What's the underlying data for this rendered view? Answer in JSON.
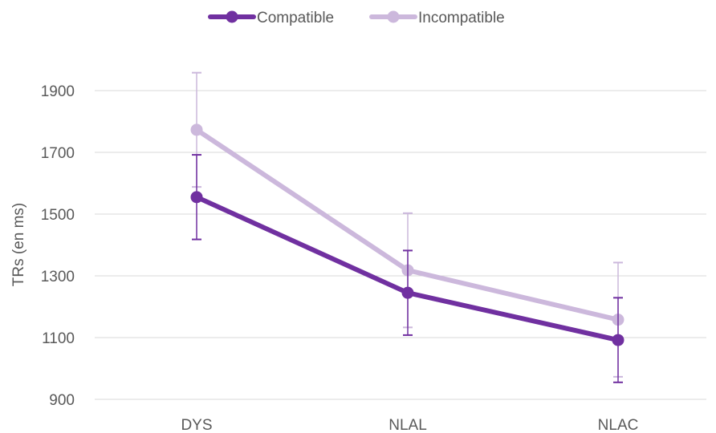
{
  "chart_data": {
    "type": "line",
    "title": "",
    "xlabel": "",
    "ylabel": "TRs (en ms)",
    "categories": [
      "DYS",
      "NLAL",
      "NLAC"
    ],
    "ylim": [
      900,
      1900
    ],
    "yticks": [
      900,
      1100,
      1300,
      1500,
      1700,
      1900
    ],
    "grid": true,
    "legend_position": "top-center",
    "series": [
      {
        "name": "Compatible",
        "color": "#7030a0",
        "values": [
          1555,
          1245,
          1092
        ],
        "error": [
          137,
          137,
          137
        ]
      },
      {
        "name": "Incompatible",
        "color": "#ccb8dc",
        "values": [
          1773,
          1318,
          1158
        ],
        "error": [
          185,
          185,
          185
        ]
      }
    ]
  }
}
